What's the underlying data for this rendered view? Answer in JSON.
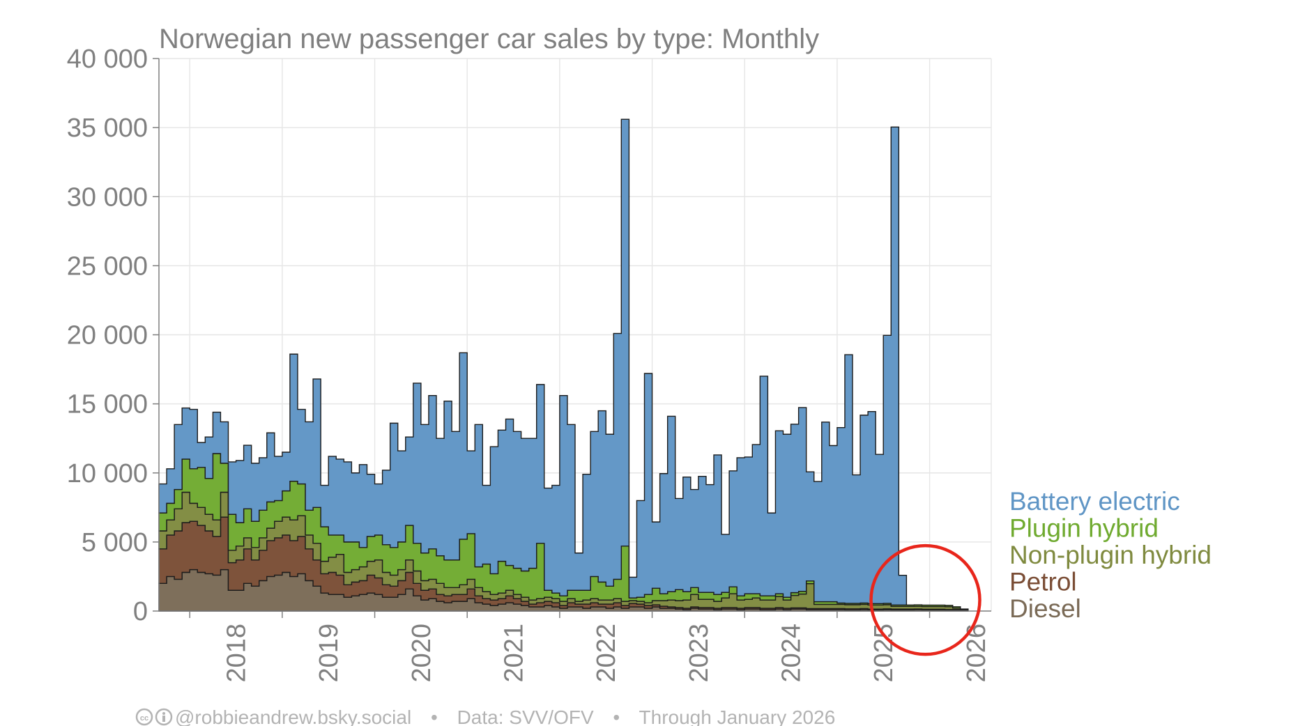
{
  "chart_data": {
    "type": "area",
    "title": "Norwegian new passenger car sales by type: Monthly",
    "xlabel": "",
    "ylabel": "",
    "ylim": [
      0,
      40000
    ],
    "xlim": [
      "2017-09",
      "2026-09"
    ],
    "y_ticks": [
      0,
      5000,
      10000,
      15000,
      20000,
      25000,
      30000,
      35000,
      40000
    ],
    "y_tick_labels": [
      "0",
      "5 000",
      "10 000",
      "15 000",
      "20 000",
      "25 000",
      "30 000",
      "35 000",
      "40 000"
    ],
    "x_tick_labels": [
      "2018",
      "2019",
      "2020",
      "2021",
      "2022",
      "2023",
      "2024",
      "2025",
      "2026"
    ],
    "grid": true,
    "stacked": true,
    "step": true,
    "legend_position": "right",
    "months_start": "2017-09",
    "series": [
      {
        "name": "Diesel",
        "color": "#7a6a56",
        "values": [
          2000,
          2500,
          2300,
          2800,
          3000,
          2800,
          2700,
          2600,
          3000,
          1500,
          1500,
          2000,
          1800,
          2200,
          2500,
          2600,
          2800,
          2500,
          2700,
          2200,
          1800,
          1300,
          1200,
          1200,
          1000,
          1100,
          1200,
          1300,
          1200,
          1000,
          1000,
          1200,
          1600,
          1100,
          800,
          900,
          700,
          600,
          700,
          700,
          900,
          600,
          500,
          400,
          500,
          600,
          500,
          400,
          300,
          300,
          400,
          300,
          200,
          300,
          300,
          200,
          300,
          300,
          200,
          300,
          200,
          300,
          300,
          200,
          300,
          200,
          200,
          150,
          100,
          200,
          150,
          150,
          100,
          150,
          150,
          100,
          150,
          150,
          100,
          100,
          150,
          100,
          150,
          150,
          100,
          100,
          100,
          100,
          100,
          80,
          80,
          100,
          80,
          80,
          100,
          80,
          80,
          80,
          100,
          80,
          80,
          80,
          60,
          60,
          50
        ]
      },
      {
        "name": "Petrol",
        "color": "#7a4d35",
        "values": [
          2500,
          3000,
          3500,
          3600,
          3500,
          3400,
          3100,
          2800,
          3800,
          2000,
          2200,
          2500,
          1900,
          2200,
          2600,
          2700,
          2700,
          2600,
          2700,
          2300,
          1900,
          1400,
          1600,
          1400,
          900,
          1000,
          1000,
          1300,
          1200,
          900,
          800,
          1000,
          1200,
          900,
          700,
          700,
          500,
          500,
          500,
          500,
          700,
          500,
          400,
          400,
          400,
          500,
          400,
          300,
          200,
          300,
          300,
          300,
          200,
          300,
          200,
          300,
          300,
          200,
          300,
          300,
          200,
          250,
          200,
          200,
          150,
          150,
          100,
          100,
          100,
          100,
          100,
          100,
          100,
          100,
          100,
          100,
          100,
          100,
          100,
          100,
          100,
          100,
          80,
          80,
          80,
          80,
          80,
          80,
          80,
          80,
          80,
          80,
          60,
          60,
          60,
          60,
          60,
          60,
          50,
          50,
          50,
          50,
          50,
          50,
          30
        ]
      },
      {
        "name": "Non-plugin hybrid",
        "color": "#7f8a3f",
        "values": [
          1300,
          1100,
          1600,
          2200,
          1300,
          1300,
          1200,
          1200,
          1800,
          900,
          1000,
          800,
          900,
          900,
          900,
          1200,
          1300,
          1500,
          1500,
          1000,
          1200,
          900,
          1100,
          1500,
          900,
          900,
          1000,
          1000,
          1300,
          900,
          800,
          800,
          900,
          900,
          700,
          700,
          800,
          600,
          500,
          700,
          700,
          600,
          500,
          400,
          400,
          400,
          300,
          300,
          300,
          300,
          300,
          300,
          300,
          300,
          200,
          300,
          300,
          300,
          300,
          300,
          300,
          200,
          200,
          200,
          300,
          400,
          500,
          500,
          600,
          900,
          600,
          600,
          500,
          700,
          1000,
          600,
          600,
          700,
          600,
          600,
          800,
          600,
          900,
          1000,
          1800,
          300,
          300,
          300,
          300,
          300,
          300,
          300,
          300,
          300,
          300,
          200,
          200,
          200,
          200,
          200,
          200,
          200,
          200,
          100,
          50
        ]
      },
      {
        "name": "Plugin hybrid",
        "color": "#6faa2f",
        "values": [
          1300,
          1200,
          1400,
          2400,
          2500,
          2900,
          2600,
          4800,
          2100,
          2600,
          1700,
          2100,
          1900,
          2000,
          1900,
          1500,
          1900,
          2800,
          2300,
          1800,
          2600,
          2500,
          1600,
          1400,
          2200,
          2000,
          1400,
          1800,
          1800,
          2000,
          2000,
          2000,
          2500,
          2000,
          2000,
          2200,
          2000,
          2000,
          2000,
          3300,
          3300,
          1500,
          2000,
          1500,
          2300,
          1800,
          1900,
          1900,
          2300,
          4000,
          500,
          400,
          400,
          600,
          800,
          700,
          1600,
          1300,
          1000,
          1400,
          4000,
          200,
          300,
          600,
          900,
          500,
          600,
          800,
          600,
          500,
          500,
          500,
          500,
          400,
          500,
          300,
          400,
          300,
          300,
          300,
          200,
          200,
          200,
          200,
          200,
          200,
          200,
          200,
          100,
          100,
          100,
          100,
          100,
          100,
          100,
          100,
          100,
          100,
          100,
          100,
          100,
          100,
          100,
          100,
          20
        ]
      },
      {
        "name": "Battery electric",
        "color": "#5f95c5",
        "values": [
          2100,
          2500,
          4700,
          3700,
          4300,
          1800,
          3000,
          3000,
          3000,
          3800,
          4500,
          4600,
          4200,
          3800,
          5000,
          3200,
          2800,
          9200,
          5400,
          6400,
          9300,
          3000,
          5700,
          5500,
          5800,
          5000,
          6000,
          4500,
          3700,
          5400,
          9000,
          6600,
          6400,
          11600,
          9300,
          11100,
          8500,
          11500,
          9300,
          13500,
          6000,
          10300,
          5700,
          9200,
          9500,
          10600,
          9900,
          9600,
          9400,
          11500,
          7400,
          7800,
          14500,
          12000,
          2700,
          8400,
          10500,
          12400,
          11000,
          17800,
          30900,
          1500,
          7000,
          16000,
          4800,
          8700,
          12700,
          6600,
          8300,
          7100,
          8400,
          7800,
          10100,
          4200,
          8400,
          10000,
          9900,
          10800,
          15900,
          6000,
          11800,
          11800,
          12200,
          13300,
          7900,
          8700,
          13000,
          11300,
          12700,
          18000,
          9300,
          13600,
          13900,
          10800,
          19400,
          34600,
          2150
        ]
      }
    ],
    "annotations": [
      {
        "kind": "circle",
        "color": "#e8261b",
        "center_month": "2025-12"
      }
    ],
    "footer": {
      "credit": "@robbieandrew.bsky.social",
      "source": "Data: SVV/OFV",
      "period": "Through January 2026",
      "separator": "•"
    }
  }
}
